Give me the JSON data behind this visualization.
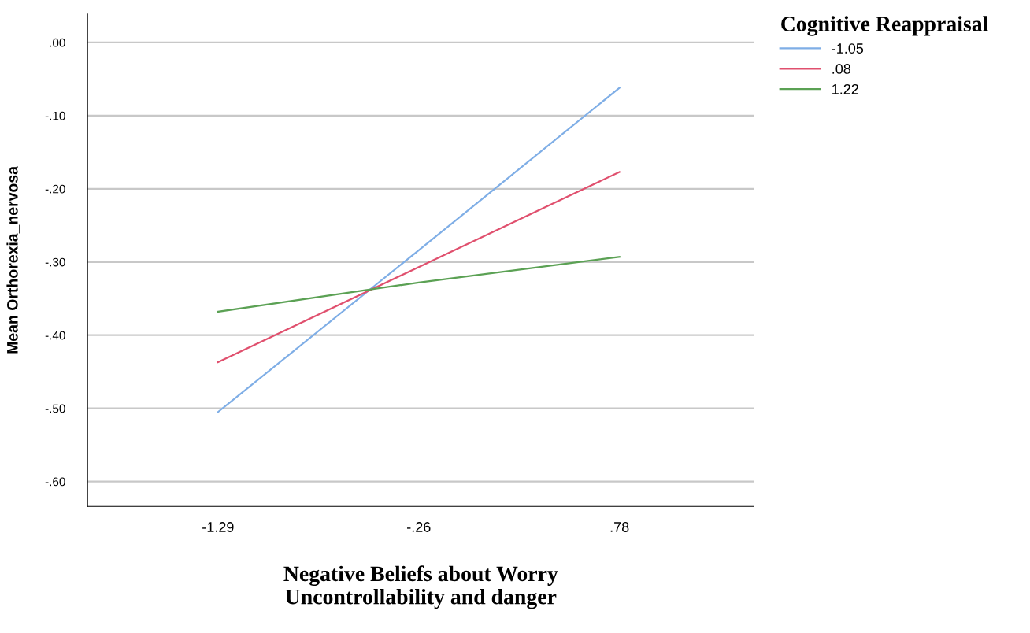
{
  "chart_data": {
    "type": "line",
    "xlabel": "Negative Beliefs about Worry\nUncontrollability and danger",
    "ylabel": "Mean Orthorexia_nervosa",
    "legend_title": "Cognitive Reappraisal",
    "categories": [
      "-1.29",
      "-.26",
      ".78"
    ],
    "series": [
      {
        "name": "-1.05",
        "color": "#7faee6",
        "values": [
          -0.505,
          -0.284,
          -0.062
        ]
      },
      {
        "name": ".08",
        "color": "#e0506e",
        "values": [
          -0.437,
          -0.307,
          -0.177
        ]
      },
      {
        "name": "1.22",
        "color": "#5ba154",
        "values": [
          -0.368,
          -0.328,
          -0.293
        ]
      }
    ],
    "ylim": [
      -0.634,
      0.039
    ],
    "yticks": [
      {
        "value": -0.6,
        "label": "-.60"
      },
      {
        "value": -0.5,
        "label": "-.50"
      },
      {
        "value": -0.4,
        "label": "-.40"
      },
      {
        "value": -0.3,
        "label": "-.30"
      },
      {
        "value": -0.2,
        "label": "-.20"
      },
      {
        "value": -0.1,
        "label": "-.10"
      },
      {
        "value": 0,
        "label": ".00"
      }
    ],
    "grid": "y",
    "legend": "top right",
    "marker": "none",
    "line_style": "solid"
  }
}
